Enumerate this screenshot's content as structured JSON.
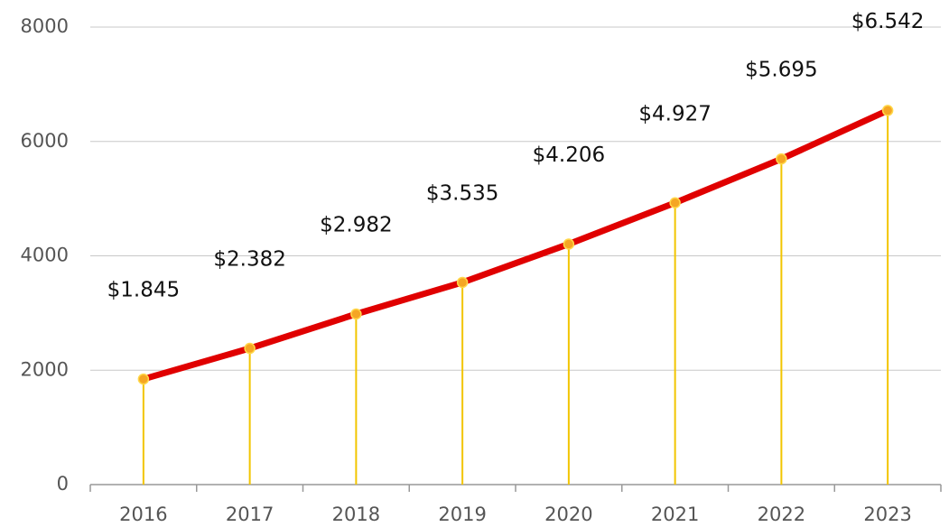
{
  "chart_data": {
    "type": "line",
    "categories": [
      "2016",
      "2017",
      "2018",
      "2019",
      "2020",
      "2021",
      "2022",
      "2023"
    ],
    "values": [
      1845,
      2382,
      2982,
      3535,
      4206,
      4927,
      5695,
      6542
    ],
    "value_labels": [
      "$1.845",
      "$2.382",
      "$2.982",
      "$3.535",
      "$4.206",
      "$4.927",
      "$5.695",
      "$6.542"
    ],
    "color": "#e00000",
    "marker_color": "#f5a623",
    "drop_line_color": "#f2c500",
    "ylim": [
      0,
      8000
    ],
    "yticks": [
      0,
      2000,
      4000,
      6000,
      8000
    ],
    "grid": true
  }
}
